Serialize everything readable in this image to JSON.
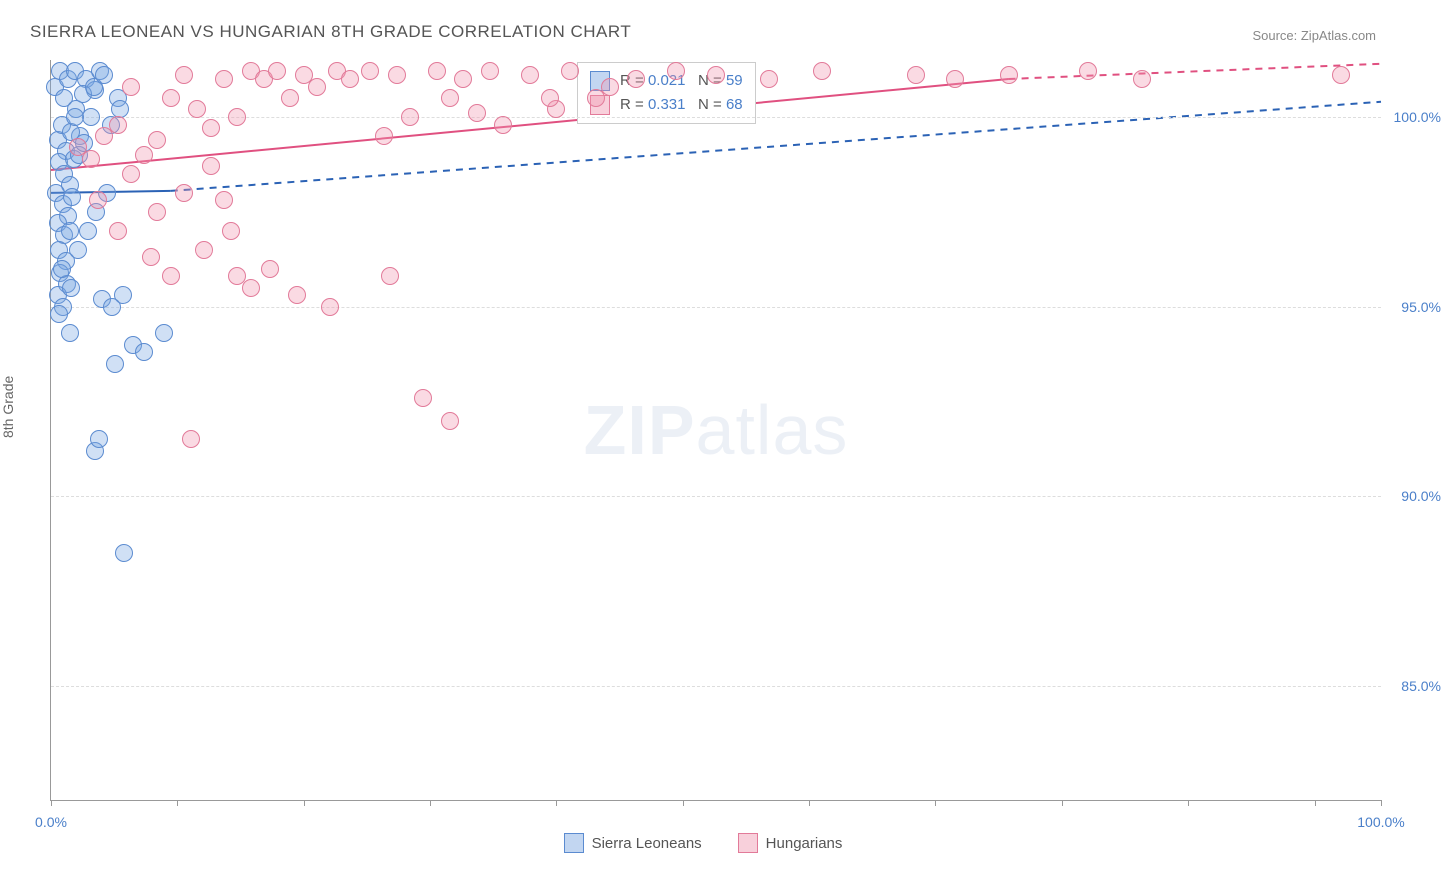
{
  "title": "SIERRA LEONEAN VS HUNGARIAN 8TH GRADE CORRELATION CHART",
  "source_label": "Source: ZipAtlas.com",
  "y_axis_label": "8th Grade",
  "watermark": {
    "bold": "ZIP",
    "light": "atlas"
  },
  "chart": {
    "type": "scatter",
    "background_color": "#ffffff",
    "grid_color": "#dddddd",
    "axis_color": "#999999",
    "tick_label_color": "#4a7fc9",
    "xlim": [
      0,
      100
    ],
    "ylim": [
      82,
      101.5
    ],
    "x_tick_positions": [
      0,
      9.5,
      19,
      28.5,
      38,
      47.5,
      57,
      66.5,
      76,
      85.5,
      95,
      100
    ],
    "x_tick_labels": {
      "0": "0.0%",
      "100": "100.0%"
    },
    "y_ticks": [
      85,
      90,
      95,
      100
    ],
    "y_tick_labels": {
      "85": "85.0%",
      "90": "90.0%",
      "95": "95.0%",
      "100": "100.0%"
    },
    "marker_radius": 9,
    "marker_stroke_width": 1.2,
    "series": [
      {
        "id": "sierra_leoneans",
        "label": "Sierra Leoneans",
        "fill": "rgba(120, 165, 225, 0.35)",
        "stroke": "#5b8bd0",
        "swatch_fill": "rgba(120, 165, 225, 0.45)",
        "swatch_stroke": "#5b8bd0",
        "R": "0.021",
        "N": "59",
        "trend": {
          "solid": {
            "x1": 0,
            "y1": 98.0,
            "x2": 9,
            "y2": 98.05
          },
          "dashed": {
            "x1": 9,
            "y1": 98.05,
            "x2": 100,
            "y2": 100.4
          },
          "color": "#2b62b5",
          "width": 2
        },
        "points": [
          [
            0.3,
            100.8
          ],
          [
            0.7,
            101.2
          ],
          [
            1.0,
            100.5
          ],
          [
            1.3,
            101.0
          ],
          [
            1.8,
            101.2
          ],
          [
            2.2,
            99.5
          ],
          [
            2.6,
            101.0
          ],
          [
            3.0,
            100.0
          ],
          [
            3.3,
            100.7
          ],
          [
            3.7,
            101.2
          ],
          [
            0.5,
            99.4
          ],
          [
            0.8,
            99.8
          ],
          [
            1.1,
            99.1
          ],
          [
            1.5,
            99.6
          ],
          [
            1.9,
            100.2
          ],
          [
            2.4,
            100.6
          ],
          [
            0.6,
            98.8
          ],
          [
            1.0,
            98.5
          ],
          [
            1.4,
            98.2
          ],
          [
            1.7,
            98.9
          ],
          [
            2.1,
            99.0
          ],
          [
            0.4,
            98.0
          ],
          [
            0.9,
            97.7
          ],
          [
            1.3,
            97.4
          ],
          [
            1.6,
            97.9
          ],
          [
            0.5,
            97.2
          ],
          [
            1.0,
            96.9
          ],
          [
            1.4,
            97.0
          ],
          [
            0.6,
            96.5
          ],
          [
            1.1,
            96.2
          ],
          [
            0.7,
            95.9
          ],
          [
            1.2,
            95.6
          ],
          [
            0.5,
            95.3
          ],
          [
            3.8,
            95.2
          ],
          [
            5.4,
            95.3
          ],
          [
            5.0,
            100.5
          ],
          [
            4.5,
            99.8
          ],
          [
            5.2,
            100.2
          ],
          [
            4.8,
            93.5
          ],
          [
            6.2,
            94.0
          ],
          [
            7.0,
            93.8
          ],
          [
            8.5,
            94.3
          ],
          [
            3.2,
            100.8
          ],
          [
            4.0,
            101.1
          ],
          [
            1.8,
            100.0
          ],
          [
            2.5,
            99.3
          ],
          [
            4.6,
            95.0
          ],
          [
            0.8,
            96.0
          ],
          [
            1.5,
            95.5
          ],
          [
            0.9,
            95.0
          ],
          [
            2.0,
            96.5
          ],
          [
            2.8,
            97.0
          ],
          [
            3.4,
            97.5
          ],
          [
            4.2,
            98.0
          ],
          [
            3.3,
            91.2
          ],
          [
            3.6,
            91.5
          ],
          [
            5.5,
            88.5
          ],
          [
            0.6,
            94.8
          ],
          [
            1.4,
            94.3
          ]
        ]
      },
      {
        "id": "hungarians",
        "label": "Hungarians",
        "fill": "rgba(240, 150, 175, 0.35)",
        "stroke": "#e27a99",
        "swatch_fill": "rgba(240, 150, 175, 0.45)",
        "swatch_stroke": "#e27a99",
        "R": "0.331",
        "N": "68",
        "trend": {
          "solid": {
            "x1": 0,
            "y1": 98.6,
            "x2": 72,
            "y2": 101.0
          },
          "dashed": {
            "x1": 72,
            "y1": 101.0,
            "x2": 100,
            "y2": 101.4
          },
          "color": "#e05080",
          "width": 2
        },
        "points": [
          [
            2.0,
            99.2
          ],
          [
            3.0,
            98.9
          ],
          [
            4.0,
            99.5
          ],
          [
            5.0,
            99.8
          ],
          [
            6.0,
            100.8
          ],
          [
            7.0,
            99.0
          ],
          [
            8.0,
            99.4
          ],
          [
            9.0,
            100.5
          ],
          [
            10.0,
            101.1
          ],
          [
            11.0,
            100.2
          ],
          [
            12.0,
            99.7
          ],
          [
            13.0,
            101.0
          ],
          [
            14.0,
            100.0
          ],
          [
            15.0,
            101.2
          ],
          [
            16.0,
            101.0
          ],
          [
            17.0,
            101.2
          ],
          [
            18.0,
            100.5
          ],
          [
            19.0,
            101.1
          ],
          [
            20.0,
            100.8
          ],
          [
            21.5,
            101.2
          ],
          [
            22.5,
            101.0
          ],
          [
            24.0,
            101.2
          ],
          [
            25.0,
            99.5
          ],
          [
            26.0,
            101.1
          ],
          [
            27.0,
            100.0
          ],
          [
            29.0,
            101.2
          ],
          [
            30.0,
            100.5
          ],
          [
            31.0,
            101.0
          ],
          [
            33.0,
            101.2
          ],
          [
            34.0,
            99.8
          ],
          [
            36.0,
            101.1
          ],
          [
            38.0,
            100.2
          ],
          [
            39.0,
            101.2
          ],
          [
            41.0,
            100.5
          ],
          [
            44.0,
            101.0
          ],
          [
            47.0,
            101.2
          ],
          [
            50.0,
            101.1
          ],
          [
            54.0,
            101.0
          ],
          [
            58.0,
            101.2
          ],
          [
            65.0,
            101.1
          ],
          [
            68.0,
            101.0
          ],
          [
            72.0,
            101.1
          ],
          [
            78.0,
            101.2
          ],
          [
            82.0,
            101.0
          ],
          [
            97.0,
            101.1
          ],
          [
            32.0,
            100.1
          ],
          [
            6.0,
            98.5
          ],
          [
            8.0,
            97.5
          ],
          [
            10.0,
            98.0
          ],
          [
            12.0,
            98.7
          ],
          [
            11.5,
            96.5
          ],
          [
            13.5,
            97.0
          ],
          [
            15.0,
            95.5
          ],
          [
            16.5,
            96.0
          ],
          [
            3.5,
            97.8
          ],
          [
            5.0,
            97.0
          ],
          [
            7.5,
            96.3
          ],
          [
            9.0,
            95.8
          ],
          [
            14.0,
            95.8
          ],
          [
            18.5,
            95.3
          ],
          [
            21.0,
            95.0
          ],
          [
            25.5,
            95.8
          ],
          [
            10.5,
            91.5
          ],
          [
            13.0,
            97.8
          ],
          [
            28.0,
            92.6
          ],
          [
            30.0,
            92.0
          ],
          [
            37.5,
            100.5
          ],
          [
            42.0,
            100.8
          ]
        ]
      }
    ]
  },
  "stats_labels": {
    "R": "R =",
    "N": "N ="
  },
  "bottom_legend_order": [
    "sierra_leoneans",
    "hungarians"
  ]
}
